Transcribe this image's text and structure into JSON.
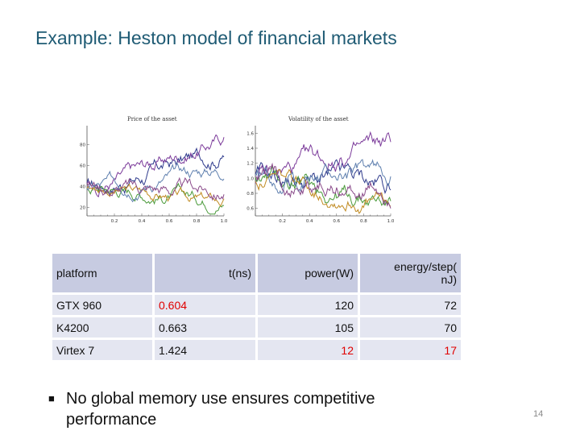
{
  "slide": {
    "title": "Example: Heston model of financial markets",
    "page_number": "14",
    "bullet": "No global memory use ensures competitive performance"
  },
  "chart_data": [
    {
      "type": "line",
      "title": "Price of the asset",
      "xlim": [
        0,
        1.0
      ],
      "x_ticks": [
        "0.2",
        "0.4",
        "0.6",
        "0.8",
        "1.0"
      ],
      "y_ticks": [
        "20",
        "40",
        "60",
        "80"
      ],
      "ylim": [
        12,
        98
      ],
      "colors": [
        "#2e3a8c",
        "#7b3a9a",
        "#4a9a3a",
        "#c08a20",
        "#5e7fae",
        "#8a4a8a"
      ]
    },
    {
      "type": "line",
      "title": "Volatility of the asset",
      "xlim": [
        0,
        1.0
      ],
      "x_ticks": [
        "0.2",
        "0.4",
        "0.6",
        "0.8",
        "1.0"
      ],
      "y_ticks": [
        "0.6",
        "0.8",
        "1.0",
        "1.2",
        "1.4",
        "1.6"
      ],
      "ylim": [
        0.5,
        1.7
      ],
      "colors": [
        "#2e3a8c",
        "#7b3a9a",
        "#4a9a3a",
        "#c08a20",
        "#5e7fae",
        "#8a4a8a"
      ]
    }
  ],
  "table": {
    "header": [
      "platform",
      "t(ns)",
      "power(W)",
      "energy/step(\nnJ)"
    ],
    "rows": [
      [
        "GTX 960",
        "0.604",
        "120",
        "72"
      ],
      [
        "K4200",
        "0.663",
        "105",
        "70"
      ],
      [
        "Virtex 7",
        "1.424",
        "12",
        "17"
      ]
    ],
    "highlight_color": "#e00000"
  }
}
